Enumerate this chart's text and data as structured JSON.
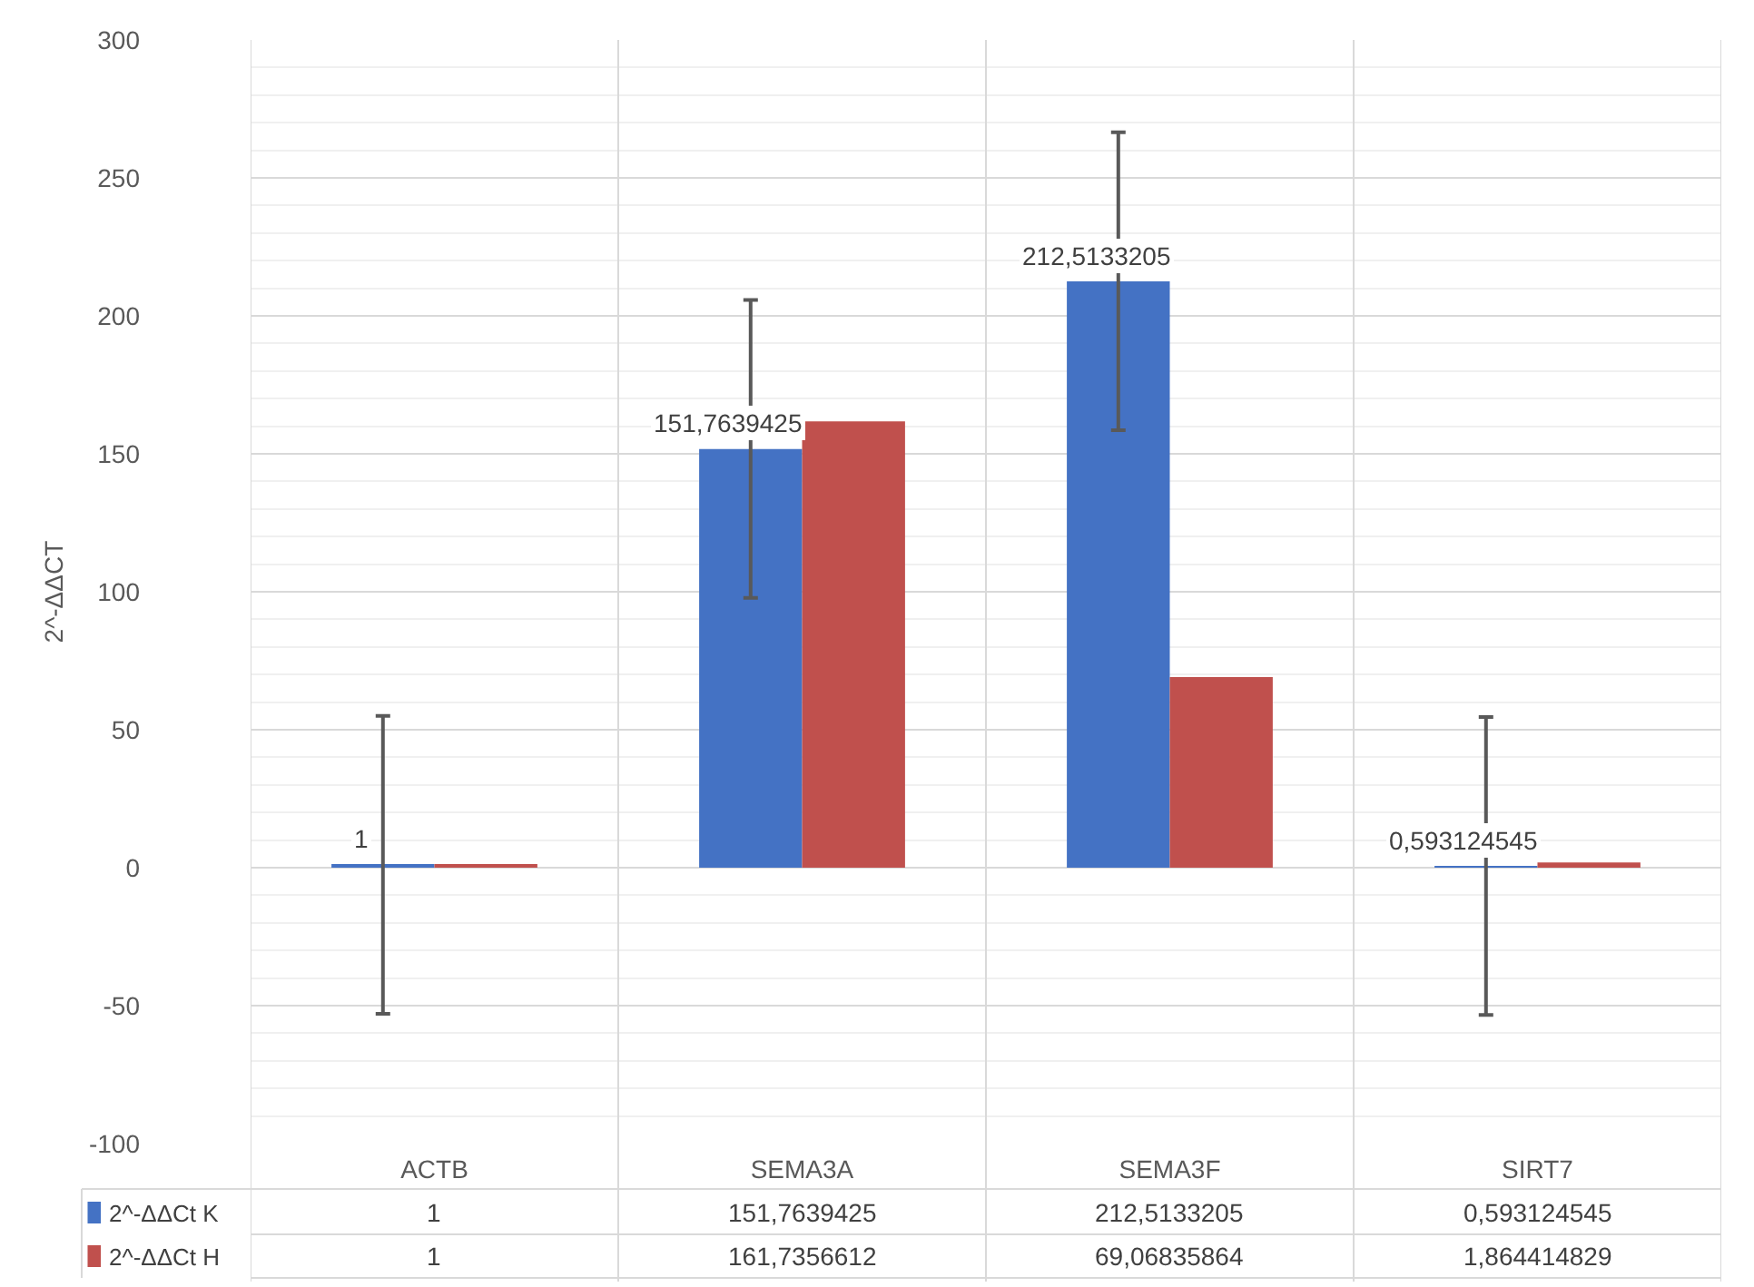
{
  "chart_data": {
    "type": "bar",
    "ylabel": "2^-ΔΔCT",
    "categories": [
      "ACTB",
      "SEMA3A",
      "SEMA3F",
      "SIRT7"
    ],
    "series": [
      {
        "name": "2^-ΔΔCt K",
        "color": "#4472c4",
        "values": [
          1,
          151.7639425,
          212.5133205,
          0.593124545
        ],
        "errors": [
          54,
          54,
          54,
          54
        ],
        "value_labels": [
          "1",
          "151,7639425",
          "212,5133205",
          "0,593124545"
        ]
      },
      {
        "name": "2^-ΔΔCt H",
        "color": "#c0504d",
        "values": [
          1,
          161.7356612,
          69.06835864,
          1.864414829
        ],
        "value_labels": [
          "1",
          "161,7356612",
          "69,06835864",
          "1,864414829"
        ]
      }
    ],
    "ylim": [
      -100,
      300
    ],
    "yticks": [
      -100,
      -50,
      0,
      50,
      100,
      150,
      200,
      250,
      300
    ],
    "grid": true,
    "legend": "bottom left"
  }
}
